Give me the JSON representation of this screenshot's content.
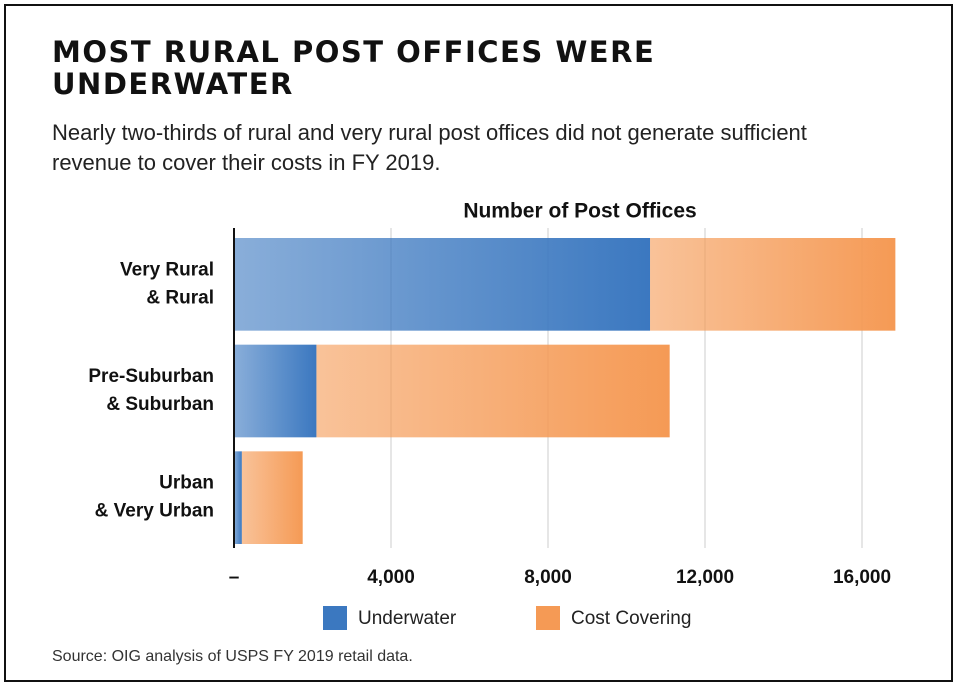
{
  "chart_data": {
    "type": "stacked-barh",
    "title": "MOST RURAL POST OFFICES WERE UNDERWATER",
    "subtitle": "Nearly two-thirds of rural and very rural post offices did not generate sufficient revenue to cover their costs in FY 2019.",
    "xlabel": "Number of Post Offices",
    "categories": [
      [
        "Very Rural",
        "& Rural"
      ],
      [
        "Pre-Suburban",
        "& Suburban"
      ],
      [
        "Urban",
        "& Very Urban"
      ]
    ],
    "series": [
      {
        "name": "Underwater",
        "color": "#3b78c0",
        "values": [
          10600,
          2100,
          200
        ]
      },
      {
        "name": "Cost Covering",
        "color": "#f59a55",
        "values": [
          6250,
          9000,
          1550
        ]
      }
    ],
    "xlim": [
      0,
      17000
    ],
    "xticks": [
      {
        "value": 0,
        "label": "–"
      },
      {
        "value": 4000,
        "label": "4,000"
      },
      {
        "value": 8000,
        "label": "8,000"
      },
      {
        "value": 12000,
        "label": "12,000"
      },
      {
        "value": 16000,
        "label": "16,000"
      }
    ],
    "grid": true,
    "source": "Source: OIG analysis of USPS FY 2019 retail data."
  }
}
